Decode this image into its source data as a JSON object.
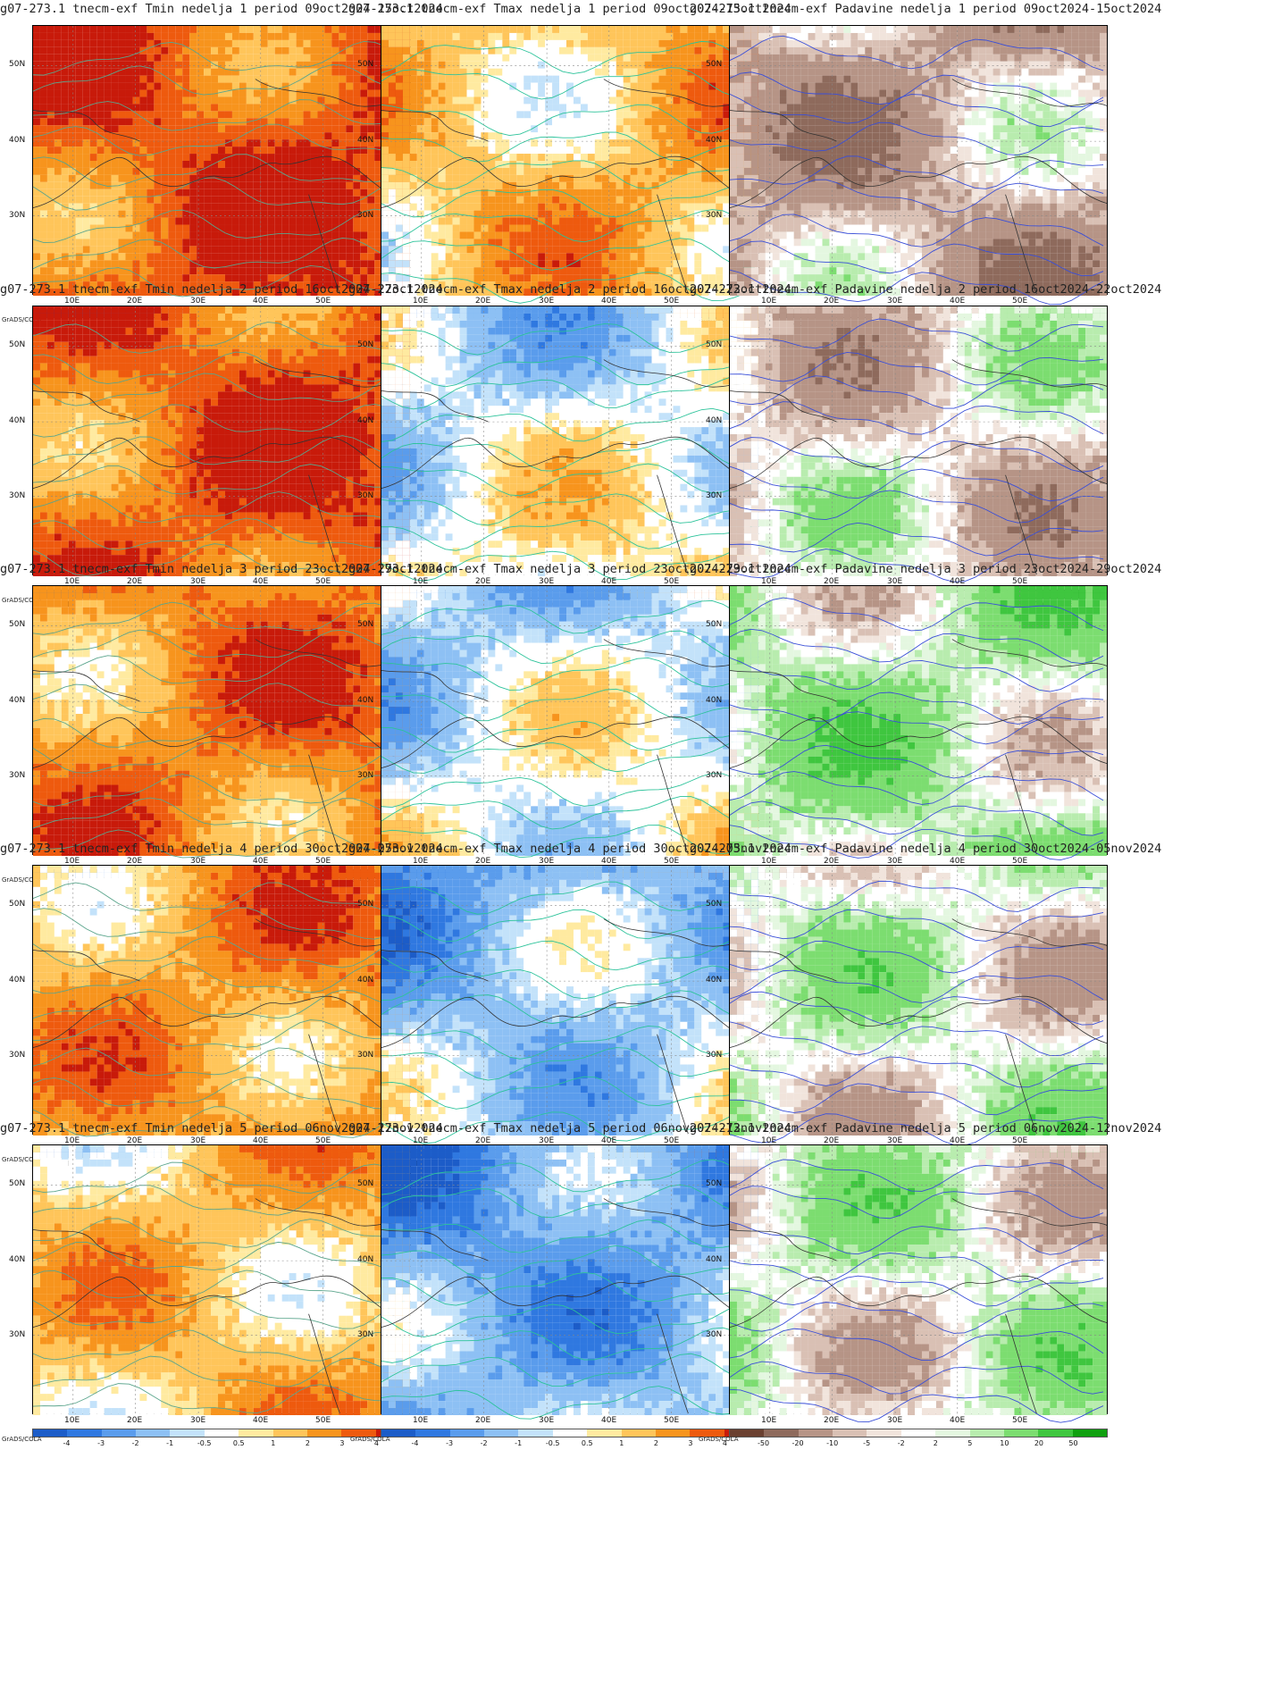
{
  "lat_labels": [
    "50N",
    "40N",
    "30N"
  ],
  "lon_labels": [
    "10E",
    "20E",
    "30E",
    "40E",
    "50E"
  ],
  "grads_label": "GrADS/COLA",
  "temp_scale": {
    "ticks": [
      "-4",
      "-3",
      "-2",
      "-1",
      "-0.5",
      "0.5",
      "1",
      "2",
      "3",
      "4"
    ],
    "colors": [
      "#1c5cc8",
      "#2f78e0",
      "#5a9cec",
      "#8dc0f4",
      "#c3e2fa",
      "#ffffff",
      "#ffeaa0",
      "#ffc55a",
      "#f7941d",
      "#ee5a0e",
      "#c81a0a"
    ]
  },
  "precip_scale": {
    "ticks": [
      "-50",
      "-20",
      "-10",
      "-5",
      "-2",
      "2",
      "5",
      "10",
      "20",
      "50"
    ],
    "colors": [
      "#6a4030",
      "#8e6a5c",
      "#b69486",
      "#d9c0b4",
      "#f1e4dc",
      "#ffffff",
      "#e4f7e0",
      "#b8ecae",
      "#7cdd70",
      "#3fc63f",
      "#10a010"
    ]
  },
  "rows": [
    {
      "tmin": {
        "title": "g07-273.1 tnecm-exf Tmin nedelja 1 period 09oct2024-15oct2024",
        "level": 3.6
      },
      "tmax": {
        "title": "g07-273.1 tnecm-exf Tmax nedelja 1 period 09oct2024-15oct2024",
        "level": 1.6
      },
      "prec": {
        "title": "g07-273.1 tnecm-exf Padavine nedelja 1 period 09oct2024-15oct2024",
        "level": -1.2
      }
    },
    {
      "tmin": {
        "title": "g07-273.1 tnecm-exf Tmin nedelja 2 period 16oct2024-22oct2024",
        "level": 3.4
      },
      "tmax": {
        "title": "g07-273.1 tnecm-exf Tmax nedelja 2 period 16oct2024-22oct2024",
        "level": 0.6
      },
      "prec": {
        "title": "g07-273.1 tnecm-exf Padavine nedelja 2 period 16oct2024-22oct2024",
        "level": -0.4
      }
    },
    {
      "tmin": {
        "title": "g07-273.1 tnecm-exf Tmin nedelja 3 period 23oct2024-29oct2024",
        "level": 2.8
      },
      "tmax": {
        "title": "g07-273.1 tnecm-exf Tmax nedelja 3 period 23oct2024-29oct2024",
        "level": 0.4
      },
      "prec": {
        "title": "g07-273.1 tnecm-exf Padavine nedelja 3 period 23oct2024-29oct2024",
        "level": 0.8
      }
    },
    {
      "tmin": {
        "title": "g07-273.1 tnecm-exf Tmin nedelja 4 period 30oct2024-05nov2024",
        "level": 2.3
      },
      "tmax": {
        "title": "g07-273.1 tnecm-exf Tmax nedelja 4 period 30oct2024-05nov2024",
        "level": -0.5
      },
      "prec": {
        "title": "g07-273.1 tnecm-exf Padavine nedelja 4 period 30oct2024-05nov2024",
        "level": 0.2
      }
    },
    {
      "tmin": {
        "title": "g07-273.1 tnecm-exf Tmin nedelja 5 period 06nov2024-12nov2024",
        "level": 1.6
      },
      "tmax": {
        "title": "g07-273.1 tnecm-exf Tmax nedelja 5 period 06nov2024-12nov2024",
        "level": -1.2
      },
      "prec": {
        "title": "g07-273.1 tnecm-exf Padavine nedelja 5 period 06nov2024-12nov2024",
        "level": 0.3
      }
    }
  ]
}
